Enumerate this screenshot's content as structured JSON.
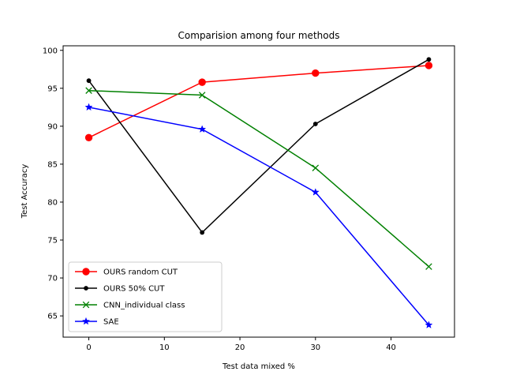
{
  "chart_data": {
    "type": "line",
    "title": "Comparision among four methods",
    "xlabel": "Test data mixed %",
    "ylabel": "Test Accuracy",
    "x": [
      0,
      15,
      30,
      45
    ],
    "xlim": [
      -3.4,
      48.4
    ],
    "ylim": [
      62.2,
      100.6
    ],
    "xticks": [
      0,
      10,
      20,
      30,
      40
    ],
    "yticks": [
      65,
      70,
      75,
      80,
      85,
      90,
      95,
      100
    ],
    "grid": false,
    "legend_position": "lower-left",
    "series": [
      {
        "name": "OURS random CUT",
        "values": [
          88.5,
          95.8,
          97.0,
          98.0
        ],
        "color": "#ff0000",
        "marker": "circle"
      },
      {
        "name": "OURS 50% CUT",
        "values": [
          96.0,
          76.0,
          90.3,
          98.8
        ],
        "color": "#000000",
        "marker": "point"
      },
      {
        "name": "CNN_individual class",
        "values": [
          94.7,
          94.1,
          84.5,
          71.5
        ],
        "color": "#008000",
        "marker": "x"
      },
      {
        "name": "SAE",
        "values": [
          92.5,
          89.6,
          81.3,
          63.8
        ],
        "color": "#0000ff",
        "marker": "star"
      }
    ]
  }
}
